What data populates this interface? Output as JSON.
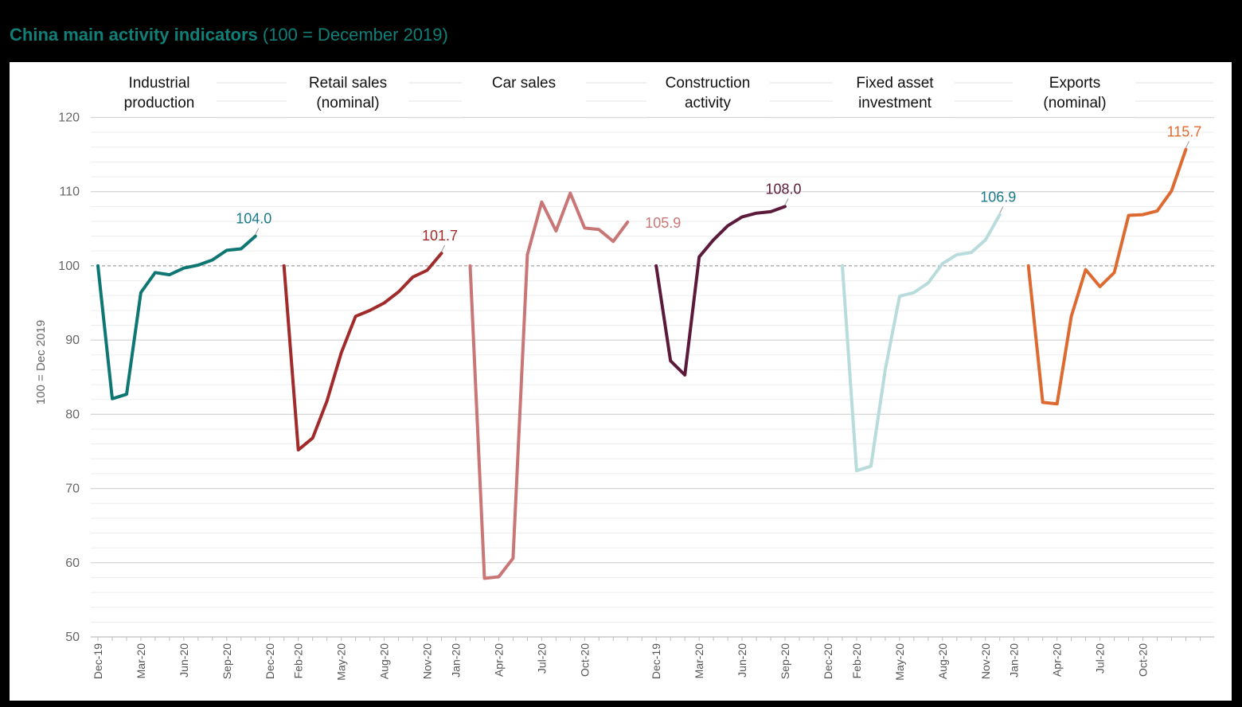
{
  "header": {
    "title": "China main activity indicators",
    "subtitle": "(100 = December 2019)"
  },
  "chart_data": {
    "type": "line",
    "ylabel": "100 = Dec 2019",
    "ylim": [
      50,
      120
    ],
    "yticks": [
      50,
      60,
      70,
      80,
      90,
      100,
      110,
      120
    ],
    "reference_line": 100,
    "grid": true,
    "x_tick_labels": [
      "Dec-19",
      "Mar-20",
      "Jun-20",
      "Sep-20",
      "Dec-20",
      "Feb-20",
      "May-20",
      "Aug-20",
      "Nov-20",
      "Jan-20",
      "Apr-20",
      "Jul-20",
      "Oct-20",
      "Dec-19",
      "Mar-20",
      "Jun-20",
      "Sep-20",
      "Dec-20",
      "Feb-20",
      "May-20",
      "Aug-20",
      "Nov-20",
      "Jan-20",
      "Apr-20",
      "Jul-20",
      "Oct-20"
    ],
    "panels": [
      {
        "name_lines": [
          "Industrial",
          "production"
        ],
        "color": "#0f7773",
        "label_color": "#1a7a8c",
        "last_label": "104.0",
        "values": [
          100,
          82.1,
          82.7,
          96.4,
          99.1,
          98.8,
          99.7,
          100.1,
          100.8,
          102.1,
          102.3,
          104.0
        ]
      },
      {
        "name_lines": [
          "Retail sales",
          "(nominal)"
        ],
        "color": "#a12a2a",
        "label_color": "#a12a2a",
        "last_label": "101.7",
        "values": [
          100,
          75.2,
          76.8,
          81.8,
          88.3,
          93.2,
          94.0,
          95.0,
          96.5,
          98.5,
          99.4,
          101.7
        ]
      },
      {
        "name_lines": [
          "Car sales"
        ],
        "color": "#c97677",
        "label_color": "#c97677",
        "last_label": "105.9",
        "values": [
          100,
          57.9,
          58.1,
          60.6,
          101.5,
          108.6,
          104.7,
          109.8,
          105.1,
          104.9,
          103.3,
          105.9
        ]
      },
      {
        "name_lines": [
          "Construction",
          "activity"
        ],
        "color": "#5c1a3a",
        "label_color": "#5c1a3a",
        "last_label": "108.0",
        "values": [
          100,
          87.2,
          85.3,
          101.2,
          103.5,
          105.4,
          106.6,
          107.1,
          107.3,
          108.0
        ]
      },
      {
        "name_lines": [
          "Fixed asset",
          "investment"
        ],
        "color": "#b8dcdb",
        "label_color": "#1a7a8c",
        "last_label": "106.9",
        "values": [
          100,
          72.4,
          73.0,
          86.0,
          95.9,
          96.4,
          97.7,
          100.3,
          101.5,
          101.8,
          103.5,
          106.9
        ]
      },
      {
        "name_lines": [
          "Exports",
          "(nominal)"
        ],
        "color": "#dd6a30",
        "label_color": "#dd6a30",
        "last_label": "115.7",
        "values": [
          100,
          81.6,
          81.4,
          93.2,
          99.5,
          97.2,
          99.1,
          106.8,
          106.9,
          107.4,
          110.1,
          115.7
        ]
      }
    ]
  }
}
